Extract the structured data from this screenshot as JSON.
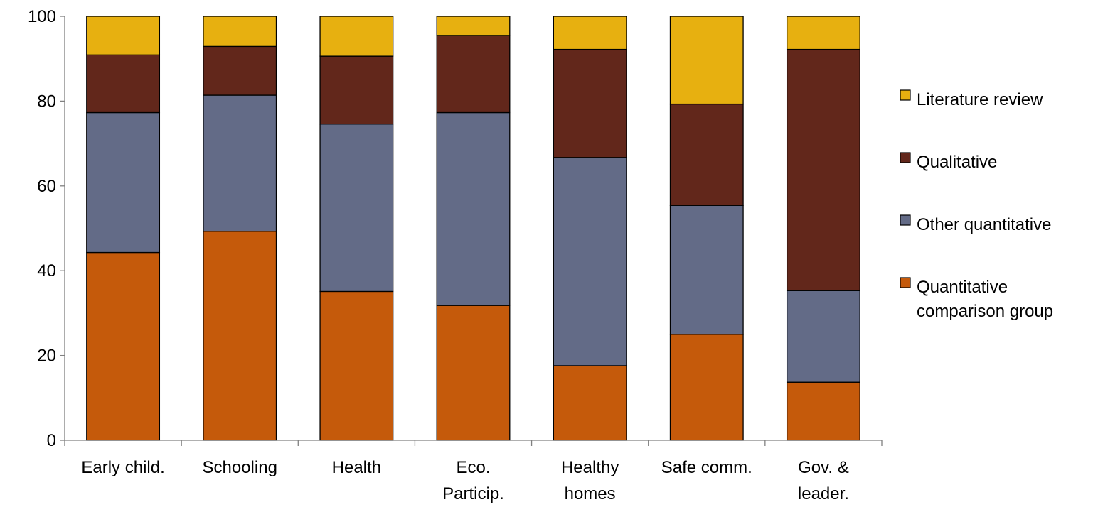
{
  "chart_data": {
    "type": "bar",
    "stacked": true,
    "title": "",
    "xlabel": "",
    "ylabel": "",
    "ylim": [
      0,
      100
    ],
    "yticks": [
      0,
      20,
      40,
      60,
      80,
      100
    ],
    "grid": false,
    "legend_position": "right",
    "categories": [
      [
        "Early child."
      ],
      [
        "Schooling"
      ],
      [
        "Health"
      ],
      [
        "Eco.",
        "Particip."
      ],
      [
        "Healthy",
        "homes"
      ],
      [
        "Safe comm."
      ],
      [
        "Gov. &",
        "leader."
      ]
    ],
    "series": [
      {
        "name": [
          "Quantitative",
          "comparison group"
        ],
        "color": "#C55A0B",
        "values": [
          44.3,
          49.3,
          35.1,
          31.8,
          17.6,
          25.0,
          13.7
        ]
      },
      {
        "name": [
          "Other quantitative"
        ],
        "color": "#636B87",
        "values": [
          33.0,
          32.1,
          39.5,
          45.5,
          49.1,
          30.4,
          21.6
        ]
      },
      {
        "name": [
          "Qualitative"
        ],
        "color": "#62271B",
        "values": [
          13.6,
          11.5,
          16.0,
          18.2,
          25.5,
          23.9,
          56.9
        ]
      },
      {
        "name": [
          "Literature review"
        ],
        "color": "#E7B010",
        "values": [
          9.1,
          7.1,
          9.4,
          4.5,
          7.8,
          20.7,
          7.8
        ]
      }
    ],
    "legend_order": [
      3,
      2,
      1,
      0
    ]
  }
}
